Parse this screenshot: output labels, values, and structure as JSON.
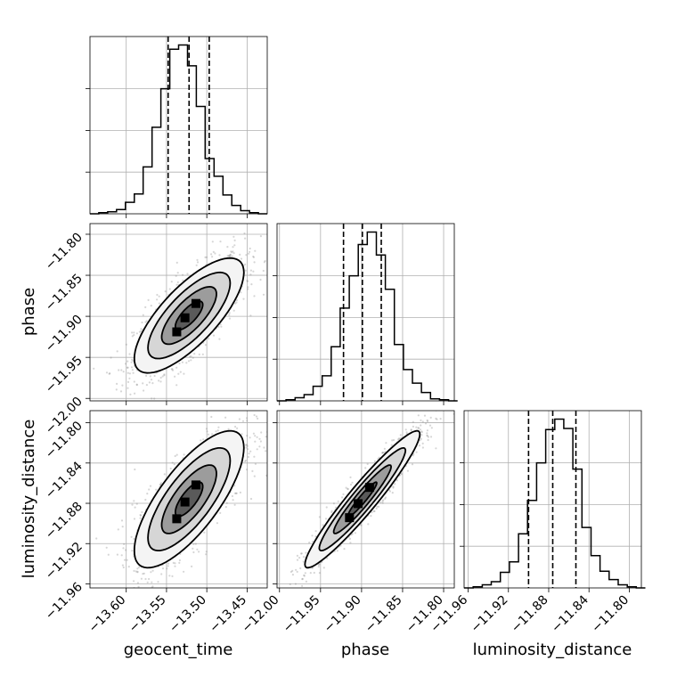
{
  "chart_data": {
    "type": "corner",
    "parameters": [
      "geocent_time",
      "phase",
      "luminosity_distance"
    ],
    "ranges": {
      "geocent_time": [
        -13.645,
        -13.425
      ],
      "phase": [
        -12.003,
        -11.787
      ],
      "luminosity_distance": [
        -11.964,
        -11.788
      ]
    },
    "ticks": {
      "geocent_time": [
        -13.6,
        -13.55,
        -13.5,
        -13.45
      ],
      "phase": [
        -12.0,
        -11.95,
        -11.9,
        -11.85,
        -11.8
      ],
      "luminosity_distance": [
        -11.96,
        -11.92,
        -11.88,
        -11.84,
        -11.8
      ]
    },
    "tick_labels": {
      "geocent_time": [
        "−13.60",
        "−13.55",
        "−13.50",
        "−13.45"
      ],
      "phase": [
        "−12.00",
        "−11.95",
        "−11.90",
        "−11.85",
        "−11.80"
      ],
      "luminosity_distance": [
        "−11.96",
        "−11.92",
        "−11.88",
        "−11.84",
        "−11.80"
      ]
    },
    "quantiles": {
      "geocent_time": [
        -13.548,
        -13.522,
        -13.497
      ],
      "phase": [
        -11.922,
        -11.899,
        -11.876
      ],
      "luminosity_distance": [
        -11.9,
        -11.876,
        -11.853
      ]
    },
    "histograms": {
      "geocent_time": {
        "edges": [
          -13.645,
          -13.634,
          -13.623,
          -13.612,
          -13.601,
          -13.59,
          -13.579,
          -13.568,
          -13.557,
          -13.546,
          -13.535,
          -13.524,
          -13.513,
          -13.502,
          -13.491,
          -13.48,
          -13.469,
          -13.458,
          -13.447,
          -13.436,
          -13.425
        ],
        "counts": [
          0,
          1,
          2,
          4,
          11,
          19,
          45,
          83,
          120,
          158,
          162,
          142,
          103,
          53,
          36,
          18,
          8,
          3,
          1,
          0
        ]
      },
      "phase": {
        "edges": [
          -12.003,
          -11.992,
          -11.981,
          -11.97,
          -11.959,
          -11.948,
          -11.937,
          -11.926,
          -11.915,
          -11.904,
          -11.893,
          -11.882,
          -11.871,
          -11.86,
          -11.849,
          -11.838,
          -11.827,
          -11.816,
          -11.805,
          -11.794,
          -11.783
        ],
        "counts": [
          0,
          1,
          3,
          6,
          14,
          24,
          52,
          89,
          120,
          150,
          162,
          140,
          107,
          54,
          30,
          17,
          8,
          2,
          1,
          0
        ]
      },
      "luminosity_distance": {
        "edges": [
          -11.964,
          -11.955,
          -11.946,
          -11.937,
          -11.928,
          -11.919,
          -11.91,
          -11.901,
          -11.892,
          -11.883,
          -11.874,
          -11.865,
          -11.856,
          -11.847,
          -11.838,
          -11.829,
          -11.82,
          -11.811,
          -11.802,
          -11.793,
          -11.784
        ],
        "counts": [
          0,
          1,
          3,
          6,
          15,
          25,
          52,
          84,
          120,
          152,
          162,
          153,
          114,
          58,
          31,
          16,
          8,
          3,
          1,
          0
        ]
      }
    },
    "pairs": [
      {
        "x": "geocent_time",
        "y": "phase",
        "center": [
          -13.522,
          -11.899
        ],
        "sd": [
          0.034,
          0.035
        ],
        "rho": 0.75
      },
      {
        "x": "geocent_time",
        "y": "luminosity_distance",
        "center": [
          -13.522,
          -11.876
        ],
        "sd": [
          0.034,
          0.034
        ],
        "rho": 0.75
      },
      {
        "x": "phase",
        "y": "luminosity_distance",
        "center": [
          -11.899,
          -11.876
        ],
        "sd": [
          0.035,
          0.034
        ],
        "rho": 0.95
      }
    ],
    "contour_levels": [
      0.5,
      1.0,
      1.5,
      2.0
    ],
    "grid": true
  }
}
